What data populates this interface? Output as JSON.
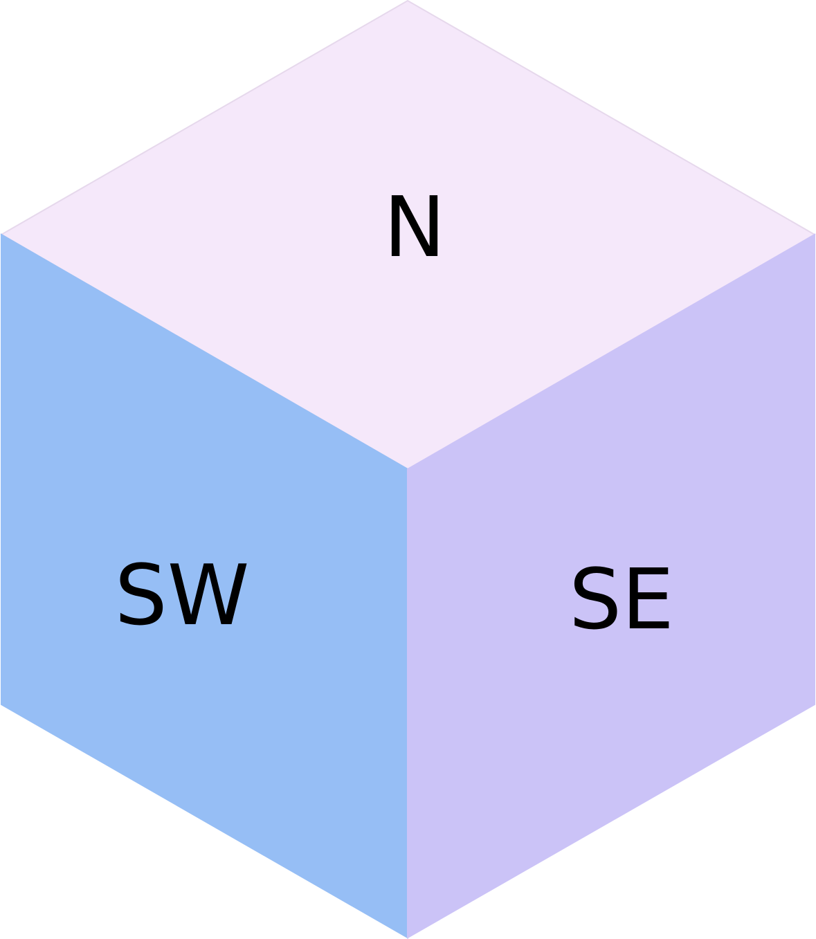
{
  "faces": {
    "north": {
      "label": "N",
      "color": "#F5E8FA"
    },
    "southwest": {
      "label": "SW",
      "color": "#96BEF5"
    },
    "southeast": {
      "label": "SE",
      "color": "#CBC3F7"
    }
  },
  "edge_color": "#E6D8EC"
}
